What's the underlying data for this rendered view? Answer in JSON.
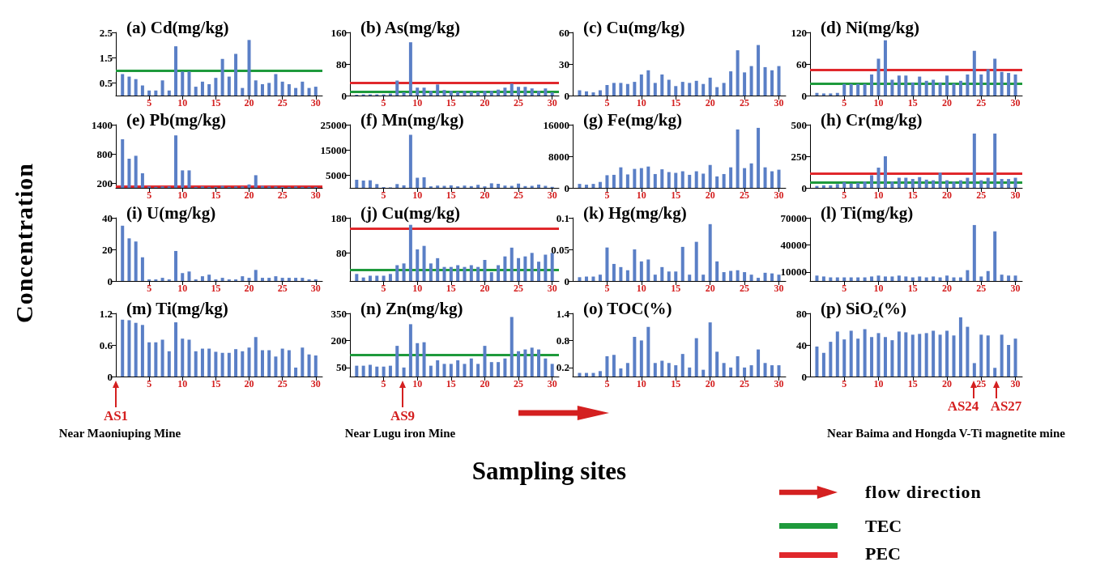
{
  "chart_data": [
    {
      "type": "bar",
      "title": "(a) Cd(mg/kg)",
      "x": [
        1,
        2,
        3,
        4,
        5,
        6,
        7,
        8,
        9,
        10,
        11,
        12,
        13,
        14,
        15,
        16,
        17,
        18,
        19,
        20,
        21,
        22,
        23,
        24,
        25,
        26,
        27,
        28,
        29,
        30
      ],
      "xlim": [
        0,
        31
      ],
      "xticks": [
        5,
        10,
        15,
        20,
        25,
        30
      ],
      "ylim": [
        0,
        2.5
      ],
      "yticks": [
        0.5,
        1.5,
        2.5
      ],
      "color": "#5a7fc6",
      "values": [
        0.85,
        0.75,
        0.65,
        0.4,
        0.2,
        0.2,
        0.6,
        0.2,
        1.95,
        0.95,
        0.95,
        0.35,
        0.55,
        0.45,
        0.7,
        1.45,
        0.75,
        1.65,
        0.3,
        2.2,
        0.6,
        0.45,
        0.5,
        0.85,
        0.55,
        0.45,
        0.3,
        0.55,
        0.3,
        0.35
      ],
      "ref_lines": [
        {
          "axis": "y",
          "value": 0.99,
          "color": "#1e9a3c"
        }
      ]
    },
    {
      "type": "bar",
      "title": "(b) As(mg/kg)",
      "x": [
        1,
        2,
        3,
        4,
        5,
        6,
        7,
        8,
        9,
        10,
        11,
        12,
        13,
        14,
        15,
        16,
        17,
        18,
        19,
        20,
        21,
        22,
        23,
        24,
        25,
        26,
        27,
        28,
        29,
        30
      ],
      "xlim": [
        0,
        31
      ],
      "xticks": [
        5,
        10,
        15,
        20,
        25,
        30
      ],
      "ylim": [
        0,
        160
      ],
      "yticks": [
        0,
        80,
        160
      ],
      "color": "#5a7fc6",
      "values": [
        2,
        3,
        3,
        3,
        3,
        5,
        38,
        8,
        135,
        20,
        20,
        12,
        28,
        14,
        12,
        10,
        12,
        10,
        10,
        12,
        12,
        15,
        20,
        30,
        22,
        22,
        18,
        12,
        18,
        8
      ],
      "ref_lines": [
        {
          "axis": "y",
          "value": 9.79,
          "color": "#1e9a3c"
        },
        {
          "axis": "y",
          "value": 33,
          "color": "#e0282c"
        }
      ]
    },
    {
      "type": "bar",
      "title": "(c) Cu(mg/kg)",
      "x": [
        1,
        2,
        3,
        4,
        5,
        6,
        7,
        8,
        9,
        10,
        11,
        12,
        13,
        14,
        15,
        16,
        17,
        18,
        19,
        20,
        21,
        22,
        23,
        24,
        25,
        26,
        27,
        28,
        29,
        30
      ],
      "xlim": [
        0,
        31
      ],
      "xticks": [
        5,
        10,
        15,
        20,
        25,
        30
      ],
      "ylim": [
        0,
        60
      ],
      "yticks": [
        0,
        30,
        60
      ],
      "color": "#5a7fc6",
      "values": [
        5,
        4,
        3,
        5,
        10,
        12,
        12,
        11,
        13,
        20,
        24,
        12,
        20,
        15,
        9,
        13,
        12,
        14,
        11,
        17,
        8,
        12,
        23,
        43,
        22,
        28,
        48,
        27,
        24,
        28
      ]
    },
    {
      "type": "bar",
      "title": "(d) Ni(mg/kg)",
      "x": [
        1,
        2,
        3,
        4,
        5,
        6,
        7,
        8,
        9,
        10,
        11,
        12,
        13,
        14,
        15,
        16,
        17,
        18,
        19,
        20,
        21,
        22,
        23,
        24,
        25,
        26,
        27,
        28,
        29,
        30
      ],
      "xlim": [
        0,
        31
      ],
      "xticks": [
        5,
        10,
        15,
        20,
        25,
        30
      ],
      "ylim": [
        0,
        120
      ],
      "yticks": [
        0,
        60,
        120
      ],
      "color": "#5a7fc6",
      "values": [
        5,
        4,
        4,
        5,
        22,
        22,
        22,
        22,
        40,
        70,
        105,
        30,
        38,
        38,
        25,
        36,
        28,
        30,
        25,
        38,
        23,
        28,
        40,
        85,
        40,
        50,
        70,
        45,
        43,
        40
      ],
      "ref_lines": [
        {
          "axis": "y",
          "value": 22.7,
          "color": "#1e9a3c"
        },
        {
          "axis": "y",
          "value": 48.6,
          "color": "#e0282c"
        }
      ]
    },
    {
      "type": "bar",
      "title": "(e) Pb(mg/kg)",
      "x": [
        1,
        2,
        3,
        4,
        5,
        6,
        7,
        8,
        9,
        10,
        11,
        12,
        13,
        14,
        15,
        16,
        17,
        18,
        19,
        20,
        21,
        22,
        23,
        24,
        25,
        26,
        27,
        28,
        29,
        30
      ],
      "xlim": [
        0,
        31
      ],
      "xticks": [
        5,
        10,
        15,
        20,
        25,
        30
      ],
      "ylim": [
        100,
        1400
      ],
      "yticks": [
        200,
        800,
        1400
      ],
      "color": "#5a7fc6",
      "values": [
        1100,
        700,
        760,
        400,
        130,
        120,
        130,
        130,
        1180,
        460,
        460,
        120,
        130,
        120,
        120,
        140,
        120,
        130,
        130,
        170,
        360,
        140,
        130,
        130,
        120,
        120,
        130,
        120,
        120,
        120
      ],
      "ref_lines": [
        {
          "axis": "y",
          "value": 128,
          "color": "#e0282c"
        }
      ]
    },
    {
      "type": "bar",
      "title": "(f) Mn(mg/kg)",
      "x": [
        1,
        2,
        3,
        4,
        5,
        6,
        7,
        8,
        9,
        10,
        11,
        12,
        13,
        14,
        15,
        16,
        17,
        18,
        19,
        20,
        21,
        22,
        23,
        24,
        25,
        26,
        27,
        28,
        29,
        30
      ],
      "xlim": [
        0,
        31
      ],
      "xticks": [
        5,
        10,
        15,
        20,
        25,
        30
      ],
      "ylim": [
        0,
        25000
      ],
      "yticks": [
        5000,
        15000,
        25000
      ],
      "color": "#5a7fc6",
      "values": [
        3200,
        2900,
        3000,
        1500,
        300,
        200,
        1500,
        1000,
        21000,
        4000,
        4200,
        600,
        900,
        800,
        1000,
        600,
        900,
        700,
        1200,
        600,
        1800,
        1600,
        900,
        800,
        1700,
        700,
        800,
        1300,
        800,
        400
      ]
    },
    {
      "type": "bar",
      "title": "(g) Fe(mg/kg)",
      "x": [
        1,
        2,
        3,
        4,
        5,
        6,
        7,
        8,
        9,
        10,
        11,
        12,
        13,
        14,
        15,
        16,
        17,
        18,
        19,
        20,
        21,
        22,
        23,
        24,
        25,
        26,
        27,
        28,
        29,
        30
      ],
      "xlim": [
        0,
        31
      ],
      "xticks": [
        5,
        10,
        15,
        20,
        25,
        30
      ],
      "ylim": [
        0,
        16000
      ],
      "yticks": [
        0,
        8000,
        16000
      ],
      "color": "#5a7fc6",
      "values": [
        1000,
        800,
        1000,
        1500,
        3200,
        3300,
        5200,
        3400,
        4800,
        5000,
        5400,
        3500,
        4700,
        4000,
        3800,
        4200,
        3300,
        4200,
        3600,
        5800,
        2900,
        3500,
        5200,
        14800,
        5000,
        6200,
        15200,
        5200,
        4200,
        4600
      ]
    },
    {
      "type": "bar",
      "title": "(h) Cr(mg/kg)",
      "x": [
        1,
        2,
        3,
        4,
        5,
        6,
        7,
        8,
        9,
        10,
        11,
        12,
        13,
        14,
        15,
        16,
        17,
        18,
        19,
        20,
        21,
        22,
        23,
        24,
        25,
        26,
        27,
        28,
        29,
        30
      ],
      "xlim": [
        0,
        31
      ],
      "xticks": [
        5,
        10,
        15,
        20,
        25,
        30
      ],
      "ylim": [
        0,
        500
      ],
      "yticks": [
        0,
        250,
        500
      ],
      "color": "#5a7fc6",
      "values": [
        15,
        20,
        20,
        30,
        45,
        35,
        40,
        50,
        100,
        160,
        250,
        50,
        80,
        80,
        70,
        85,
        65,
        60,
        120,
        60,
        50,
        60,
        80,
        430,
        60,
        80,
        430,
        70,
        70,
        80
      ],
      "ref_lines": [
        {
          "axis": "y",
          "value": 43.4,
          "color": "#1e9a3c"
        },
        {
          "axis": "y",
          "value": 111,
          "color": "#e0282c"
        }
      ]
    },
    {
      "type": "bar",
      "title": "(i) U(mg/kg)",
      "x": [
        1,
        2,
        3,
        4,
        5,
        6,
        7,
        8,
        9,
        10,
        11,
        12,
        13,
        14,
        15,
        16,
        17,
        18,
        19,
        20,
        21,
        22,
        23,
        24,
        25,
        26,
        27,
        28,
        29,
        30
      ],
      "xlim": [
        0,
        31
      ],
      "xticks": [
        5,
        10,
        15,
        20,
        25,
        30
      ],
      "ylim": [
        0,
        40
      ],
      "yticks": [
        0,
        20,
        40
      ],
      "color": "#5a7fc6",
      "values": [
        35,
        27,
        25,
        15,
        1,
        1,
        2,
        1,
        19,
        5,
        6,
        1,
        3,
        4,
        1,
        2,
        1,
        1,
        3,
        2,
        7,
        2,
        2,
        3,
        2,
        2,
        2,
        2,
        1,
        1
      ]
    },
    {
      "type": "bar",
      "title": "(j) Cu(mg/kg)",
      "x": [
        1,
        2,
        3,
        4,
        5,
        6,
        7,
        8,
        9,
        10,
        11,
        12,
        13,
        14,
        15,
        16,
        17,
        18,
        19,
        20,
        21,
        22,
        23,
        24,
        25,
        26,
        27,
        28,
        29,
        30
      ],
      "xlim": [
        0,
        31
      ],
      "xticks": [
        5,
        10,
        15,
        20,
        25,
        30
      ],
      "ylim": [
        0,
        180
      ],
      "yticks": [
        80,
        180
      ],
      "color": "#5a7fc6",
      "values": [
        20,
        10,
        15,
        15,
        15,
        20,
        45,
        50,
        160,
        90,
        100,
        50,
        65,
        40,
        40,
        45,
        40,
        45,
        40,
        60,
        25,
        45,
        70,
        95,
        65,
        70,
        80,
        55,
        75,
        80
      ],
      "ref_lines": [
        {
          "axis": "y",
          "value": 31.6,
          "color": "#1e9a3c"
        },
        {
          "axis": "y",
          "value": 149,
          "color": "#e0282c"
        }
      ]
    },
    {
      "type": "bar",
      "title": "(k) Hg(mg/kg)",
      "x": [
        1,
        2,
        3,
        4,
        5,
        6,
        7,
        8,
        9,
        10,
        11,
        12,
        13,
        14,
        15,
        16,
        17,
        18,
        19,
        20,
        21,
        22,
        23,
        24,
        25,
        26,
        27,
        28,
        29,
        30
      ],
      "xlim": [
        0,
        31
      ],
      "xticks": [
        5,
        10,
        15,
        20,
        25,
        30
      ],
      "ylim": [
        0,
        0.1
      ],
      "yticks": [
        0,
        0.05,
        0.1
      ],
      "color": "#5a7fc6",
      "values": [
        0.006,
        0.007,
        0.007,
        0.01,
        0.053,
        0.027,
        0.022,
        0.017,
        0.05,
        0.031,
        0.034,
        0.01,
        0.022,
        0.015,
        0.015,
        0.054,
        0.01,
        0.062,
        0.01,
        0.09,
        0.031,
        0.014,
        0.016,
        0.017,
        0.014,
        0.01,
        0.005,
        0.013,
        0.012,
        0.01
      ]
    },
    {
      "type": "bar",
      "title": "(l) Ti(mg/kg)",
      "x": [
        1,
        2,
        3,
        4,
        5,
        6,
        7,
        8,
        9,
        10,
        11,
        12,
        13,
        14,
        15,
        16,
        17,
        18,
        19,
        20,
        21,
        22,
        23,
        24,
        25,
        26,
        27,
        28,
        29,
        30
      ],
      "xlim": [
        0,
        31
      ],
      "xticks": [
        5,
        10,
        15,
        20,
        25,
        30
      ],
      "ylim": [
        0,
        70000
      ],
      "yticks": [
        10000,
        40000,
        70000
      ],
      "color": "#5a7fc6",
      "values": [
        6000,
        5000,
        4000,
        4000,
        4000,
        4000,
        4000,
        4000,
        5000,
        6000,
        5000,
        5000,
        6000,
        5000,
        4000,
        5000,
        4000,
        5000,
        4000,
        6000,
        4000,
        4000,
        12000,
        62000,
        5000,
        11000,
        55000,
        7000,
        6000,
        6000
      ]
    },
    {
      "type": "bar",
      "title": "(m) Ti(mg/kg)",
      "x": [
        1,
        2,
        3,
        4,
        5,
        6,
        7,
        8,
        9,
        10,
        11,
        12,
        13,
        14,
        15,
        16,
        17,
        18,
        19,
        20,
        21,
        22,
        23,
        24,
        25,
        26,
        27,
        28,
        29,
        30
      ],
      "xlim": [
        0,
        31
      ],
      "xticks": [
        5,
        10,
        15,
        20,
        25,
        30
      ],
      "ylim": [
        0,
        1.2
      ],
      "yticks": [
        0,
        0.6,
        1.2
      ],
      "color": "#5a7fc6",
      "values": [
        1.08,
        1.07,
        1.02,
        0.98,
        0.65,
        0.65,
        0.7,
        0.48,
        1.03,
        0.72,
        0.7,
        0.48,
        0.53,
        0.53,
        0.47,
        0.45,
        0.45,
        0.52,
        0.48,
        0.55,
        0.75,
        0.5,
        0.5,
        0.38,
        0.53,
        0.5,
        0.17,
        0.55,
        0.42,
        0.4
      ]
    },
    {
      "type": "bar",
      "title": "(n) Zn(mg/kg)",
      "x": [
        1,
        2,
        3,
        4,
        5,
        6,
        7,
        8,
        9,
        10,
        11,
        12,
        13,
        14,
        15,
        16,
        17,
        18,
        19,
        20,
        21,
        22,
        23,
        24,
        25,
        26,
        27,
        28,
        29,
        30
      ],
      "xlim": [
        0,
        31
      ],
      "xticks": [
        5,
        10,
        15,
        20,
        25,
        30
      ],
      "ylim": [
        0,
        350
      ],
      "yticks": [
        50,
        200,
        350
      ],
      "color": "#5a7fc6",
      "values": [
        60,
        60,
        65,
        55,
        55,
        60,
        170,
        50,
        290,
        185,
        190,
        60,
        90,
        70,
        70,
        90,
        70,
        100,
        70,
        170,
        80,
        80,
        100,
        330,
        140,
        150,
        160,
        150,
        100,
        70
      ],
      "ref_lines": [
        {
          "axis": "y",
          "value": 121,
          "color": "#1e9a3c"
        }
      ]
    },
    {
      "type": "bar",
      "title": "(o) TOC(%)",
      "x": [
        1,
        2,
        3,
        4,
        5,
        6,
        7,
        8,
        9,
        10,
        11,
        12,
        13,
        14,
        15,
        16,
        17,
        18,
        19,
        20,
        21,
        22,
        23,
        24,
        25,
        26,
        27,
        28,
        29,
        30
      ],
      "xlim": [
        0,
        31
      ],
      "xticks": [
        5,
        10,
        15,
        20,
        25,
        30
      ],
      "ylim": [
        0,
        1.4
      ],
      "yticks": [
        0.2,
        0.8,
        1.4
      ],
      "color": "#5a7fc6",
      "values": [
        0.08,
        0.08,
        0.08,
        0.12,
        0.45,
        0.48,
        0.18,
        0.3,
        0.88,
        0.8,
        1.1,
        0.3,
        0.35,
        0.3,
        0.25,
        0.5,
        0.2,
        0.85,
        0.15,
        1.2,
        0.55,
        0.3,
        0.2,
        0.45,
        0.2,
        0.25,
        0.6,
        0.3,
        0.25,
        0.25
      ]
    },
    {
      "type": "bar",
      "title": "(p) SiO₂(%)",
      "x": [
        1,
        2,
        3,
        4,
        5,
        6,
        7,
        8,
        9,
        10,
        11,
        12,
        13,
        14,
        15,
        16,
        17,
        18,
        19,
        20,
        21,
        22,
        23,
        24,
        25,
        26,
        27,
        28,
        29,
        30
      ],
      "xlim": [
        0,
        31
      ],
      "xticks": [
        5,
        10,
        15,
        20,
        25,
        30
      ],
      "ylim": [
        0,
        80
      ],
      "yticks": [
        0,
        40,
        80
      ],
      "color": "#5a7fc6",
      "values": [
        38,
        30,
        44,
        57,
        47,
        58,
        48,
        60,
        50,
        55,
        50,
        46,
        57,
        56,
        53,
        54,
        55,
        58,
        53,
        58,
        52,
        75,
        63,
        17,
        53,
        52,
        11,
        53,
        40,
        48
      ]
    },
    {
      "type": "other",
      "annotations": [
        "Concentration",
        "Sampling sites",
        "flow direction",
        "TEC",
        "PEC",
        "AS1",
        "Near Maoniuping Mine",
        "AS9",
        "Near Lugu iron Mine",
        "AS24",
        "AS27",
        "Near Baima and Hongda V-Ti magnetite mine"
      ]
    }
  ]
}
